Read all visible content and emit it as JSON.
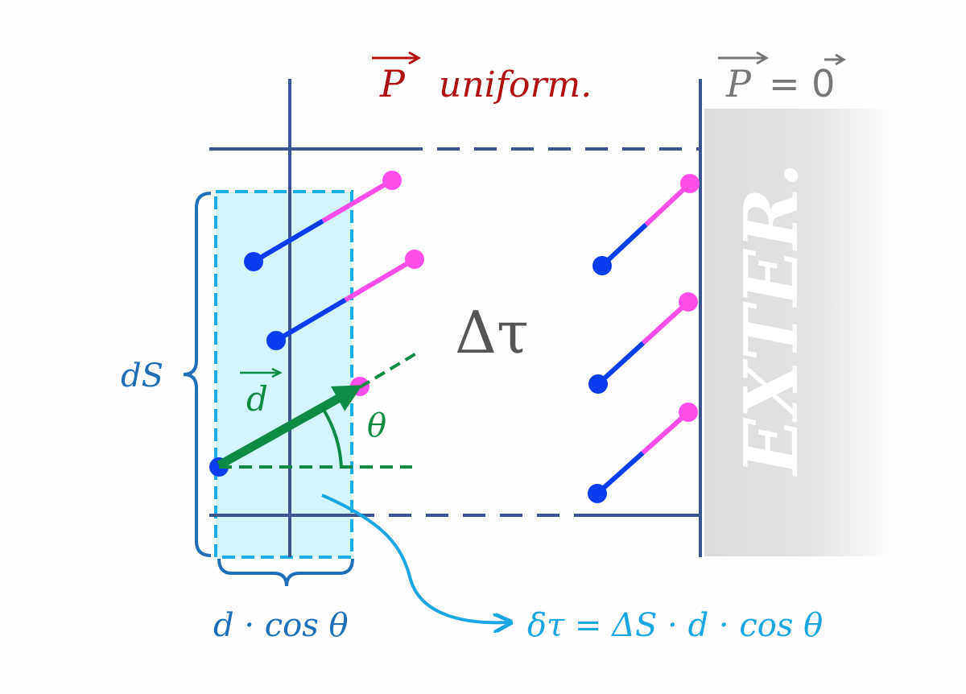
{
  "labels": {
    "p_uniform_symbol": "P",
    "p_uniform_text": "uniform.",
    "p_zero_left": "P",
    "p_zero_eq": "= 0",
    "delta_tau": "Δτ",
    "dS": "dS",
    "d_vector": "d",
    "theta": "θ",
    "d_cos_theta": "d · cos θ",
    "formula": "δτ = ΔS · d · cos θ",
    "exterior": "EXTER."
  },
  "colors": {
    "frame": "#3a5590",
    "cyan_region": "#d2f6fb",
    "cyan_border": "#1ab0e6",
    "dipole_negative": "#0a3cf0",
    "dipole_positive": "#ff4dea",
    "green": "#0f8a45",
    "p_uniform": "#b01010",
    "p_zero": "#777777",
    "brace": "#1f6fb8",
    "formula": "#1aa6e0",
    "exterior": "#dcdcdc"
  }
}
